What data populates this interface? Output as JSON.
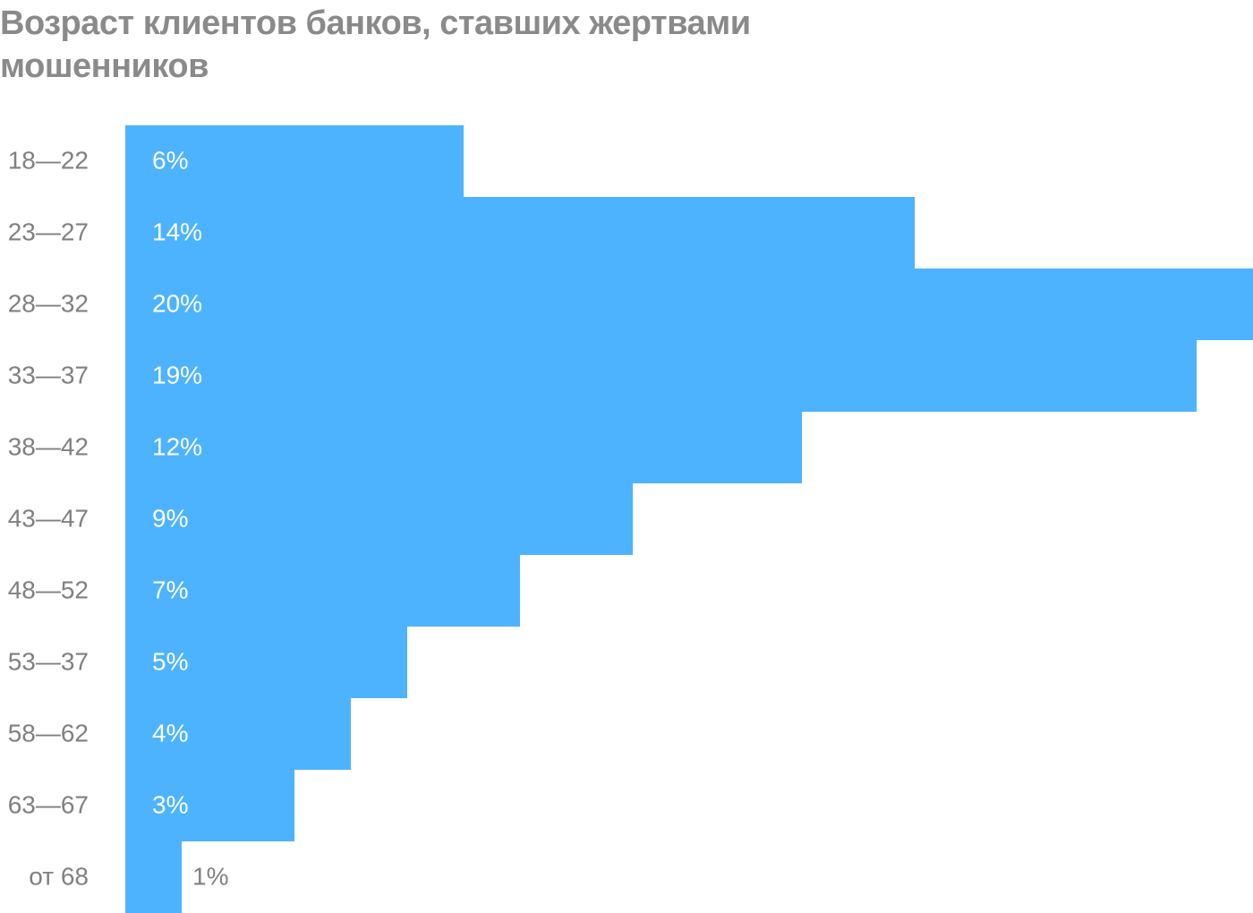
{
  "chart_data": {
    "type": "barh",
    "title": "Возраст клиентов банков, ставших жертвами мошенников",
    "categories": [
      "18—22",
      "23—27",
      "28—32",
      "33—37",
      "38—42",
      "43—47",
      "48—52",
      "53—37",
      "58—62",
      "63—67",
      "от 68"
    ],
    "values": [
      6,
      14,
      20,
      19,
      12,
      9,
      7,
      5,
      4,
      3,
      1
    ],
    "value_labels": [
      "6%",
      "14%",
      "20%",
      "19%",
      "12%",
      "9%",
      "7%",
      "5%",
      "4%",
      "3%",
      "1%"
    ],
    "color": "#4db3ff",
    "xlim": [
      0,
      20
    ]
  }
}
